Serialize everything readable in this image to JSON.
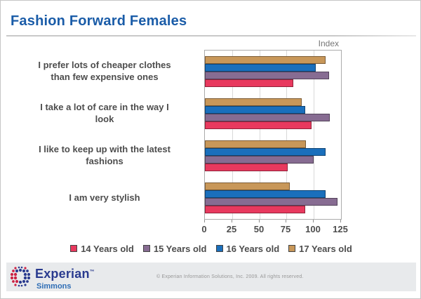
{
  "title": "Fashion Forward Females",
  "colors": {
    "title_blue": "#1a5ca8",
    "axis_text": "#4d4d4d",
    "grid": "#d9d9d9",
    "plot_border": "#ababab",
    "footer_band": "#e8eaec",
    "logo_navy": "#2a3b8f",
    "logo_blue": "#2e6db5",
    "logo_red": "#cc2244",
    "copyright_gray": "#979797"
  },
  "chart_data": {
    "type": "bar",
    "orientation": "horizontal",
    "axis_label": "Index",
    "title": "Fashion Forward Females",
    "categories": [
      "I prefer lots of cheaper clothes\nthan few expensive ones",
      "I take a lot of care in the way I\nlook",
      "I like to keep up with the latest\nfashions",
      "I am very stylish"
    ],
    "series": [
      {
        "name": "14 Years old",
        "color": "#e8395e",
        "values": [
          81,
          98,
          76,
          92
        ]
      },
      {
        "name": "15 Years old",
        "color": "#876c92",
        "values": [
          114,
          115,
          100,
          122
        ]
      },
      {
        "name": "16 Years old",
        "color": "#1a6fbc",
        "values": [
          102,
          92,
          111,
          111
        ]
      },
      {
        "name": "17 Years old",
        "color": "#c89759",
        "values": [
          111,
          89,
          93,
          78
        ]
      }
    ],
    "bar_display_order_top_to_bottom": [
      "17 Years old",
      "16 Years old",
      "15 Years old",
      "14 Years old"
    ],
    "xlim": [
      0,
      125
    ],
    "xticks": [
      0,
      25,
      50,
      75,
      100,
      125
    ],
    "grid": true,
    "legend_position": "bottom"
  },
  "footer": {
    "logo_primary": "Experian",
    "logo_tm": "™",
    "logo_secondary": "Simmons",
    "copyright": "© Experian Information Solutions, Inc. 2009.  All rights reserved."
  }
}
